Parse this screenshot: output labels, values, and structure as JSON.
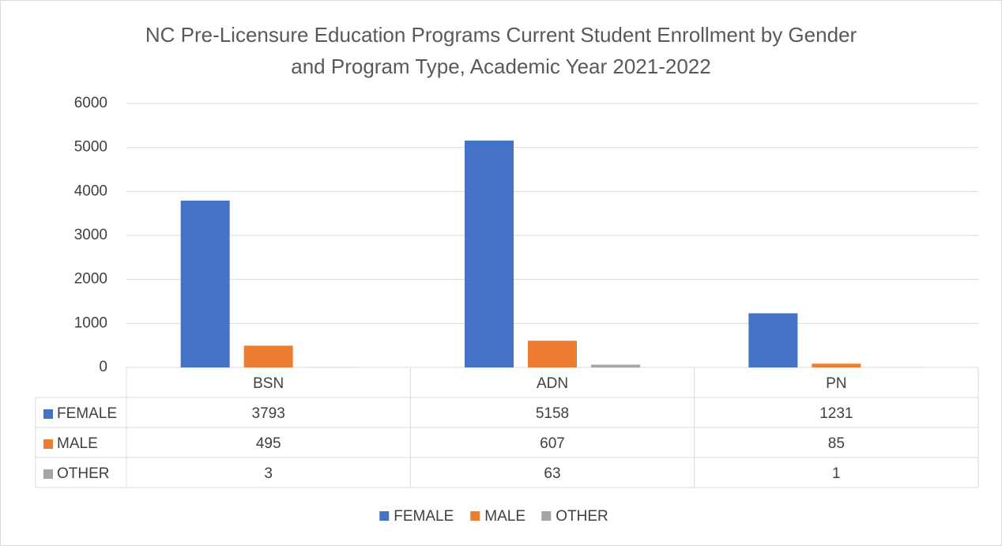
{
  "chart_data": {
    "type": "bar",
    "title": "NC Pre-Licensure Education Programs Current Student Enrollment by Gender\nand Program Type, Academic Year 2021-2022",
    "categories": [
      "BSN",
      "ADN",
      "PN"
    ],
    "series": [
      {
        "name": "FEMALE",
        "color": "#4472c4",
        "values": [
          3793,
          5158,
          1231
        ]
      },
      {
        "name": "MALE",
        "color": "#ed7d31",
        "values": [
          495,
          607,
          85
        ]
      },
      {
        "name": "OTHER",
        "color": "#a5a5a5",
        "values": [
          3,
          63,
          1
        ]
      }
    ],
    "ylim": [
      0,
      6000
    ],
    "yticks": [
      0,
      1000,
      2000,
      3000,
      4000,
      5000,
      6000
    ],
    "grid": true,
    "legend": "bottom",
    "data_table": true
  }
}
